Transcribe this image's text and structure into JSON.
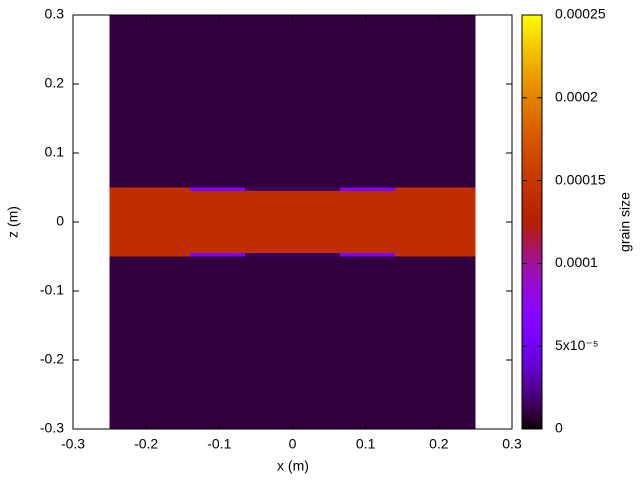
{
  "chart_data": {
    "type": "heatmap",
    "xlabel": "x (m)",
    "ylabel": "z (m)",
    "colorbar_label": "grain size",
    "palette": "gnuplot",
    "xlim": [
      -0.3,
      0.3
    ],
    "xticks": [
      -0.3,
      -0.2,
      -0.1,
      0,
      0.1,
      0.2,
      0.3
    ],
    "ylim": [
      -0.3,
      0.3
    ],
    "yticks": [
      -0.3,
      -0.2,
      -0.1,
      0,
      0.1,
      0.2,
      0.3
    ],
    "clim": [
      0,
      0.00025
    ],
    "cticks": [
      0,
      {
        "value": 5e-05,
        "label": "5x10⁻⁵"
      },
      0.0001,
      0.00015,
      0.0002,
      0.00025
    ],
    "regions": [
      {
        "x": [
          -0.25,
          0.25
        ],
        "z": [
          -0.3,
          0.3
        ],
        "value": 1e-05
      },
      {
        "x": [
          -0.25,
          0.25
        ],
        "z": [
          -0.05,
          0.05
        ],
        "value": 0.00014
      },
      {
        "x": [
          -0.065,
          0.065
        ],
        "z": [
          0.045,
          0.05
        ],
        "value": 1.5e-05
      },
      {
        "x": [
          -0.065,
          0.065
        ],
        "z": [
          -0.05,
          -0.045
        ],
        "value": 1.5e-05
      },
      {
        "x": [
          -0.14,
          -0.065
        ],
        "z": [
          0.045,
          0.05
        ],
        "value": 6e-05
      },
      {
        "x": [
          0.065,
          0.14
        ],
        "z": [
          0.045,
          0.05
        ],
        "value": 6e-05
      },
      {
        "x": [
          -0.14,
          -0.065
        ],
        "z": [
          -0.05,
          -0.045
        ],
        "value": 6e-05
      },
      {
        "x": [
          0.065,
          0.14
        ],
        "z": [
          -0.05,
          -0.045
        ],
        "value": 6e-05
      }
    ]
  }
}
